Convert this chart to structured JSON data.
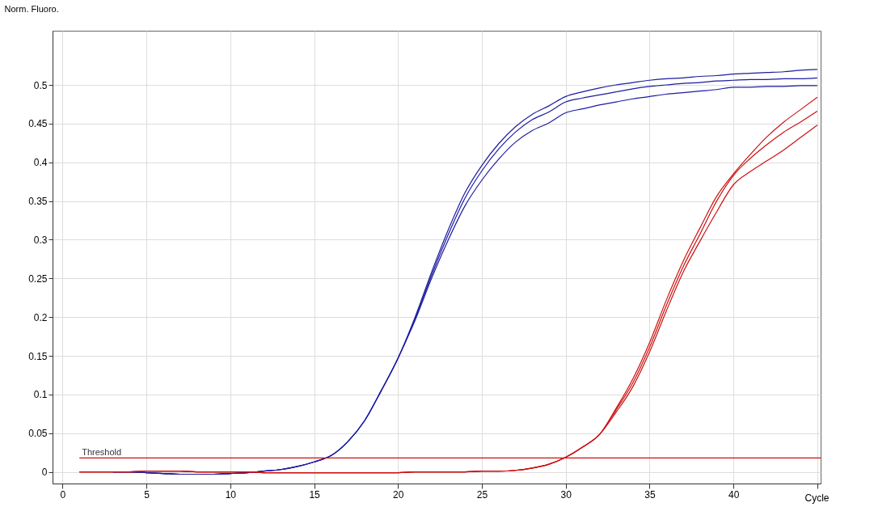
{
  "chart_data": {
    "type": "line",
    "xlabel": "Cycle",
    "ylabel": "Norm. Fluoro.",
    "x": [
      1,
      2,
      3,
      4,
      5,
      6,
      7,
      8,
      9,
      10,
      11,
      12,
      13,
      14,
      15,
      16,
      17,
      18,
      19,
      20,
      21,
      22,
      23,
      24,
      25,
      26,
      27,
      28,
      29,
      30,
      31,
      32,
      33,
      34,
      35,
      36,
      37,
      38,
      39,
      40,
      41,
      42,
      43,
      44,
      45
    ],
    "series": [
      {
        "color": "#1c1ca0",
        "values": [
          null,
          null,
          0,
          0,
          -0.001,
          -0.002,
          -0.003,
          -0.003,
          -0.003,
          -0.002,
          -0.001,
          0.001,
          0.003,
          0.007,
          0.013,
          0.021,
          0.039,
          0.066,
          0.105,
          0.147,
          0.199,
          0.258,
          0.313,
          0.361,
          0.396,
          0.424,
          0.446,
          0.462,
          0.473,
          0.485,
          0.491,
          0.496,
          0.5,
          0.503,
          0.506,
          0.508,
          0.509,
          0.511,
          0.512,
          0.514,
          0.515,
          0.516,
          0.517,
          0.519,
          0.52
        ]
      },
      {
        "color": "#1c1ca0",
        "values": [
          null,
          null,
          0,
          0,
          -0.001,
          -0.002,
          -0.003,
          -0.003,
          -0.003,
          -0.002,
          -0.001,
          0.001,
          0.003,
          0.007,
          0.013,
          0.021,
          0.039,
          0.066,
          0.105,
          0.147,
          0.197,
          0.254,
          0.307,
          0.354,
          0.389,
          0.417,
          0.439,
          0.455,
          0.465,
          0.478,
          0.483,
          0.487,
          0.491,
          0.495,
          0.498,
          0.5,
          0.502,
          0.503,
          0.505,
          0.506,
          0.507,
          0.507,
          0.508,
          0.508,
          0.509
        ]
      },
      {
        "color": "#1c1ca0",
        "values": [
          null,
          null,
          0,
          0,
          -0.001,
          -0.002,
          -0.003,
          -0.003,
          -0.003,
          -0.002,
          -0.001,
          0.001,
          0.003,
          0.007,
          0.013,
          0.021,
          0.039,
          0.066,
          0.105,
          0.147,
          0.195,
          0.25,
          0.3,
          0.344,
          0.377,
          0.404,
          0.426,
          0.441,
          0.451,
          0.464,
          0.469,
          0.474,
          0.478,
          0.482,
          0.485,
          0.488,
          0.49,
          0.492,
          0.494,
          0.497,
          0.497,
          0.498,
          0.498,
          0.499,
          0.499
        ]
      },
      {
        "color": "#cc1111",
        "values": [
          0,
          0,
          0,
          0,
          0.001,
          0.001,
          0.001,
          0,
          0,
          0,
          0,
          -0.001,
          -0.001,
          -0.001,
          -0.001,
          -0.001,
          -0.001,
          -0.001,
          -0.001,
          -0.001,
          0,
          0,
          0,
          0,
          0.001,
          0.001,
          0.002,
          0.005,
          0.01,
          0.019,
          0.032,
          0.048,
          0.082,
          0.12,
          0.167,
          0.222,
          0.272,
          0.315,
          0.356,
          0.385,
          0.41,
          0.433,
          0.452,
          0.468,
          0.484
        ]
      },
      {
        "color": "#cc1111",
        "values": [
          0,
          0,
          0,
          0,
          0.001,
          0.001,
          0.001,
          0,
          0,
          0,
          0,
          -0.001,
          -0.001,
          -0.001,
          -0.001,
          -0.001,
          -0.001,
          -0.001,
          -0.001,
          -0.001,
          0,
          0,
          0,
          0,
          0.001,
          0.001,
          0.002,
          0.005,
          0.01,
          0.019,
          0.032,
          0.048,
          0.08,
          0.115,
          0.161,
          0.215,
          0.265,
          0.307,
          0.35,
          0.383,
          0.405,
          0.423,
          0.439,
          0.452,
          0.466
        ]
      },
      {
        "color": "#cc1111",
        "values": [
          0,
          0,
          0,
          0,
          0.001,
          0.001,
          0.001,
          0,
          0,
          0,
          0,
          -0.001,
          -0.001,
          -0.001,
          -0.001,
          -0.001,
          -0.001,
          -0.001,
          -0.001,
          -0.001,
          0,
          0,
          0,
          0,
          0.001,
          0.001,
          0.002,
          0.005,
          0.01,
          0.019,
          0.032,
          0.048,
          0.077,
          0.11,
          0.155,
          0.208,
          0.258,
          0.298,
          0.336,
          0.371,
          0.388,
          0.402,
          0.416,
          0.432,
          0.448
        ]
      }
    ],
    "xlim": [
      -0.6,
      45.2
    ],
    "ylim": [
      -0.015,
      0.57
    ],
    "xticks": [
      0,
      5,
      10,
      15,
      20,
      25,
      30,
      35,
      40,
      {
        "value": 45,
        "label": null
      }
    ],
    "yticks": [
      0,
      0.05,
      0.1,
      0.15,
      0.2,
      0.25,
      0.3,
      0.35,
      0.4,
      0.45,
      0.5
    ],
    "ref_lines": [
      {
        "axis": "y",
        "value": 0.018,
        "label": "Threshold",
        "color": "#cc1111"
      }
    ],
    "grid": true,
    "legend": false,
    "marker": "none",
    "line_style": "solid"
  }
}
